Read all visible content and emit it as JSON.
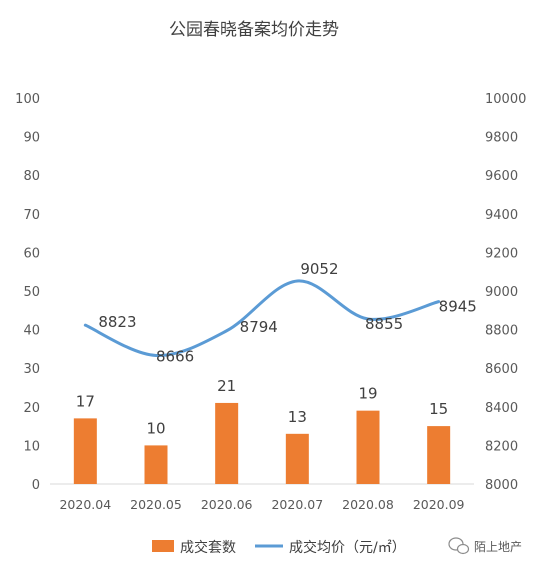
{
  "chart_data": {
    "type": "bar+line",
    "title": "公园春晓备案均价走势",
    "categories": [
      "2020.04",
      "2020.05",
      "2020.06",
      "2020.07",
      "2020.08",
      "2020.09"
    ],
    "series": [
      {
        "name": "成交套数",
        "type": "bar",
        "axis": "left",
        "color": "#ED7D31",
        "values": [
          17,
          10,
          21,
          13,
          19,
          15
        ]
      },
      {
        "name": "成交均价（元/㎡）",
        "type": "line",
        "axis": "right",
        "color": "#5B9BD5",
        "values": [
          8823,
          8666,
          8794,
          9052,
          8855,
          8945
        ]
      }
    ],
    "y_left": {
      "min": 0,
      "max": 100,
      "step": 10,
      "ticks": [
        "0",
        "10",
        "20",
        "30",
        "40",
        "50",
        "60",
        "70",
        "80",
        "90",
        "100"
      ]
    },
    "y_right": {
      "min": 8000,
      "max": 10000,
      "step": 200,
      "ticks": [
        "8000",
        "8200",
        "8400",
        "8600",
        "8800",
        "9000",
        "9200",
        "9400",
        "9600",
        "9800",
        "10000"
      ]
    },
    "grid": false,
    "legend": "bottom"
  },
  "watermark": {
    "text": "陌上地产",
    "icon": "wechat-icon"
  }
}
